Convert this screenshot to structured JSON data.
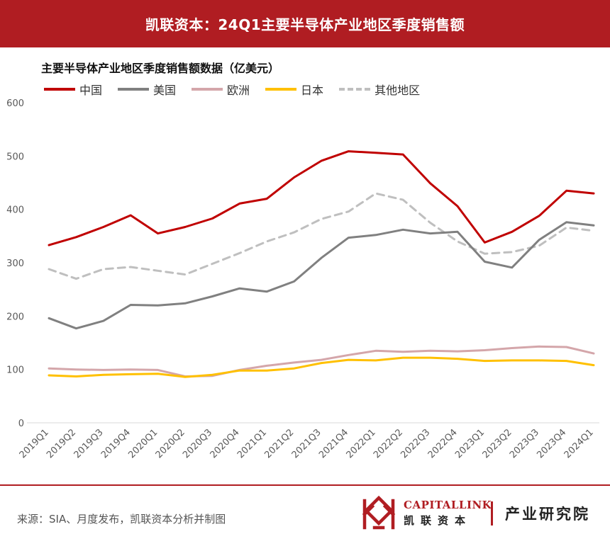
{
  "header": {
    "title": "凯联资本：24Q1主要半导体产业地区季度销售额"
  },
  "footer": {
    "source": "来源：SIA、月度发布，凯联资本分析并制图",
    "brand_en": "CAPITALLINK",
    "brand_cn": "凯联资本",
    "brand_institute": "产业研究院"
  },
  "colors": {
    "banner": "#b01d22"
  },
  "chart_data": {
    "type": "line",
    "title": "主要半导体产业地区季度销售额数据（亿美元）",
    "xlabel": "",
    "ylabel": "",
    "ylim": [
      0,
      600
    ],
    "yticks": [
      0,
      100,
      200,
      300,
      400,
      500,
      600
    ],
    "grid": false,
    "legend_position": "top-left",
    "categories": [
      "2019Q1",
      "2019Q2",
      "2019Q3",
      "2019Q4",
      "2020Q1",
      "2020Q2",
      "2020Q3",
      "2020Q4",
      "2021Q1",
      "2021Q2",
      "2021Q3",
      "2021Q4",
      "2022Q1",
      "2022Q2",
      "2022Q3",
      "2022Q4",
      "2023Q1",
      "2023Q2",
      "2023Q3",
      "2023Q4",
      "2024Q1"
    ],
    "series": [
      {
        "name": "中国",
        "color": "#c00000",
        "style": "solid",
        "values": [
          333,
          348,
          367,
          389,
          355,
          367,
          383,
          411,
          420,
          460,
          491,
          509,
          506,
          503,
          449,
          406,
          338,
          358,
          388,
          435,
          430
        ]
      },
      {
        "name": "美国",
        "color": "#808080",
        "style": "solid",
        "values": [
          196,
          177,
          191,
          221,
          220,
          224,
          237,
          252,
          246,
          265,
          309,
          347,
          352,
          362,
          355,
          358,
          302,
          291,
          343,
          376,
          370
        ]
      },
      {
        "name": "欧洲",
        "color": "#d4a6aa",
        "style": "solid",
        "values": [
          102,
          100,
          99,
          100,
          99,
          87,
          88,
          99,
          107,
          113,
          118,
          127,
          135,
          133,
          135,
          134,
          136,
          140,
          143,
          142,
          130
        ]
      },
      {
        "name": "日本",
        "color": "#ffc000",
        "style": "solid",
        "values": [
          89,
          87,
          90,
          91,
          92,
          86,
          90,
          98,
          98,
          102,
          112,
          118,
          117,
          122,
          122,
          120,
          116,
          117,
          117,
          116,
          108
        ]
      },
      {
        "name": "其他地区",
        "color": "#bfbfbf",
        "style": "dashed",
        "values": [
          288,
          270,
          288,
          292,
          285,
          278,
          298,
          318,
          340,
          357,
          382,
          396,
          430,
          418,
          375,
          340,
          317,
          320,
          332,
          366,
          360
        ]
      }
    ]
  }
}
